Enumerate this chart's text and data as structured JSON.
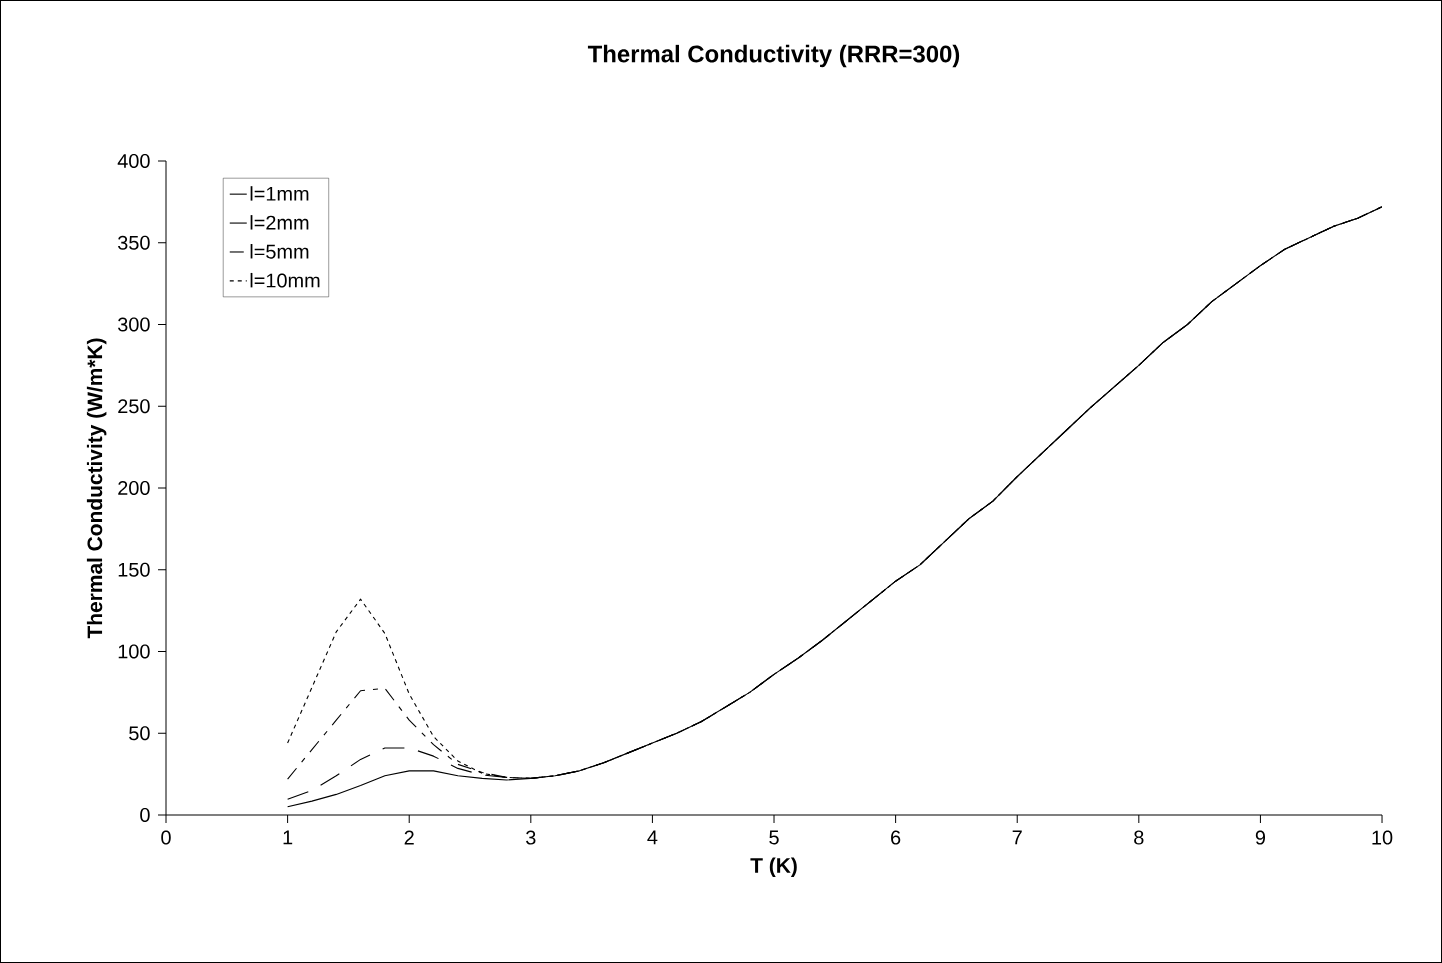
{
  "chart_data": {
    "type": "line",
    "title": "Thermal Conductivity (RRR=300)",
    "xlabel": "T (K)",
    "ylabel": "Thermal Conductivity (W/m*K)",
    "x": [
      1.0,
      1.2,
      1.4,
      1.6,
      1.8,
      2.0,
      2.2,
      2.4,
      2.6,
      2.8,
      3.0,
      3.2,
      3.4,
      3.6,
      3.8,
      4.0,
      4.2,
      4.4,
      4.6,
      4.8,
      5.0,
      5.2,
      5.4,
      5.6,
      5.8,
      6.0,
      6.2,
      6.4,
      6.6,
      6.8,
      7.0,
      7.2,
      7.4,
      7.6,
      7.8,
      8.0,
      8.2,
      8.4,
      8.6,
      8.8,
      9.0,
      9.2,
      9.4,
      9.6,
      9.8,
      10.0
    ],
    "series": [
      {
        "name": "l=1mm",
        "color": "#000000",
        "line_style": "solid",
        "values": [
          5,
          8.5,
          12.6,
          18,
          24,
          27,
          27,
          24,
          22.4,
          21.4,
          22.4,
          24,
          27,
          32,
          38,
          44,
          50,
          57,
          66,
          75,
          86,
          96,
          107,
          119,
          131,
          143,
          153,
          167,
          181,
          192,
          207,
          221,
          235,
          249,
          262,
          275,
          289,
          300,
          314,
          325,
          336,
          346,
          353,
          360,
          365,
          372
        ]
      },
      {
        "name": "l=2mm",
        "color": "#000000",
        "line_style": "dashed",
        "values": [
          9.6,
          15,
          24,
          34,
          41,
          41,
          36,
          28.5,
          24.5,
          23,
          22.4,
          24,
          27,
          32,
          38,
          44,
          50,
          57,
          66,
          75,
          86,
          96,
          107,
          119,
          131,
          143,
          153,
          167,
          181,
          192,
          207,
          221,
          235,
          249,
          262,
          275,
          289,
          300,
          314,
          325,
          336,
          346,
          353,
          360,
          365,
          372
        ]
      },
      {
        "name": "l=5mm",
        "color": "#000000",
        "line_style": "dashed",
        "values": [
          22,
          40,
          58,
          76,
          77.5,
          58,
          43,
          31,
          26,
          23,
          22.4,
          24,
          27,
          32,
          38,
          44,
          50,
          57,
          66,
          75,
          86,
          96,
          107,
          119,
          131,
          143,
          153,
          167,
          181,
          192,
          207,
          221,
          235,
          249,
          262,
          275,
          289,
          300,
          314,
          325,
          336,
          346,
          353,
          360,
          365,
          372
        ]
      },
      {
        "name": "l=10mm",
        "color": "#000000",
        "line_style": "dotted",
        "values": [
          44,
          78,
          112,
          132,
          111,
          74,
          48,
          33,
          25.5,
          23,
          22.4,
          24,
          27,
          32,
          38,
          44,
          50,
          57,
          66,
          75,
          86,
          96,
          107,
          119,
          131,
          143,
          153,
          167,
          181,
          192,
          207,
          221,
          235,
          249,
          262,
          275,
          289,
          300,
          314,
          325,
          336,
          346,
          353,
          360,
          365,
          372
        ]
      }
    ],
    "xlim": [
      0,
      10
    ],
    "xticks": [
      0,
      1,
      2,
      3,
      4,
      5,
      6,
      7,
      8,
      9,
      10
    ],
    "ylim": [
      0,
      400
    ],
    "yticks": [
      0,
      50,
      100,
      150,
      200,
      250,
      300,
      350,
      400
    ],
    "legend": "top left"
  }
}
